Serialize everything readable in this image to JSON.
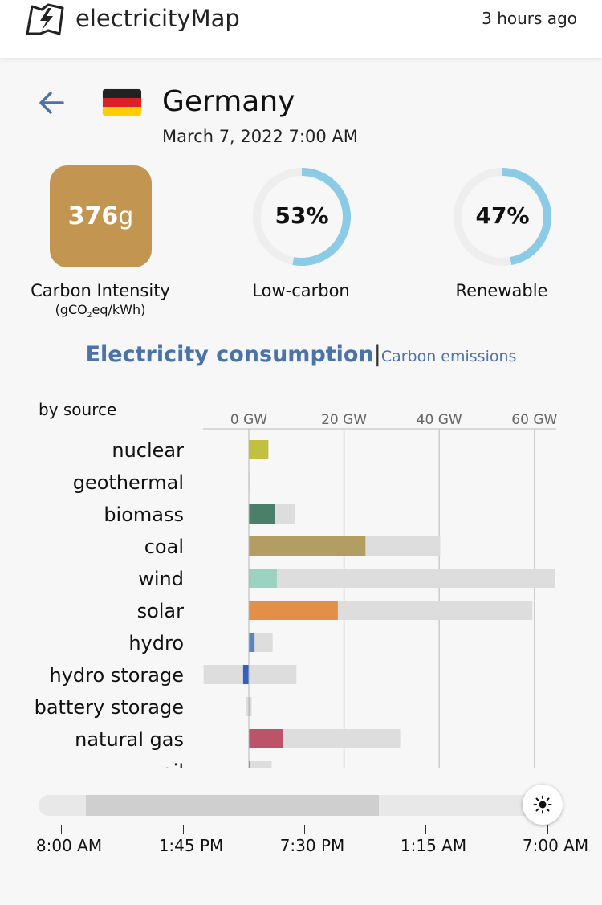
{
  "header": {
    "brand": "electricityMap",
    "time_ago": "3 hours ago",
    "logo_icon": "lightning-map-icon"
  },
  "zone": {
    "back_icon": "arrow-left-icon",
    "flag_icon": "germany-flag-icon",
    "flag_colors": [
      "#222222",
      "#dd1f26",
      "#ffce00"
    ],
    "name": "Germany",
    "datetime": "March 7, 2022 7:00 AM"
  },
  "metrics": {
    "carbon_intensity": {
      "value": "376",
      "unit": "g",
      "label": "Carbon Intensity",
      "unit_label_prefix": "(gCO",
      "unit_label_sub": "2",
      "unit_label_suffix": "eq/kWh)",
      "color": "#c29550"
    },
    "low_carbon": {
      "value": "53%",
      "fraction": 0.53,
      "label": "Low-carbon"
    },
    "renewable": {
      "value": "47%",
      "fraction": 0.47,
      "label": "Renewable"
    },
    "gauge_color": "#8ccbe6",
    "gauge_track_color": "#eeeeee"
  },
  "tabs": {
    "active": "Electricity consumption",
    "separator": "|",
    "inactive": "Carbon emissions"
  },
  "chart_data": {
    "type": "bar",
    "title": "by source",
    "xlabel": "",
    "ylabel": "",
    "unit": "GW",
    "xlim": [
      -9.5,
      65
    ],
    "xticks": [
      0,
      20,
      40,
      60
    ],
    "xtick_labels": [
      "0 GW",
      "20 GW",
      "40 GW",
      "60 GW"
    ],
    "categories": [
      "nuclear",
      "geothermal",
      "biomass",
      "coal",
      "wind",
      "solar",
      "hydro",
      "hydro storage",
      "battery storage",
      "natural gas",
      "oil"
    ],
    "series": [
      {
        "role": "production",
        "values": [
          4.1,
          0.1,
          5.4,
          24.5,
          5.9,
          18.7,
          1.2,
          -1.2,
          0,
          7.1,
          0.2
        ],
        "colors": [
          "#c3c03f",
          "#f0e5a0",
          "#4b7f6a",
          "#b29e62",
          "#9bd3c3",
          "#e48f48",
          "#5b85c2",
          "#3160c4",
          "#bfbfbf",
          "#bb5469",
          "#8b6c4b"
        ]
      },
      {
        "role": "capacity",
        "color": "#dddddd",
        "min": [
          0,
          0,
          0,
          0,
          0,
          0,
          0,
          -9.5,
          -0.6,
          0,
          0
        ],
        "max": [
          4.1,
          0.1,
          9.6,
          40.2,
          64.4,
          59.6,
          5.0,
          10.0,
          0.6,
          31.8,
          4.8
        ]
      }
    ]
  },
  "timeline": {
    "thumb_icon": "sun-icon",
    "labels": [
      "8:00 AM",
      "1:45 PM",
      "7:30 PM",
      "1:15 AM",
      "7:00 AM"
    ]
  }
}
